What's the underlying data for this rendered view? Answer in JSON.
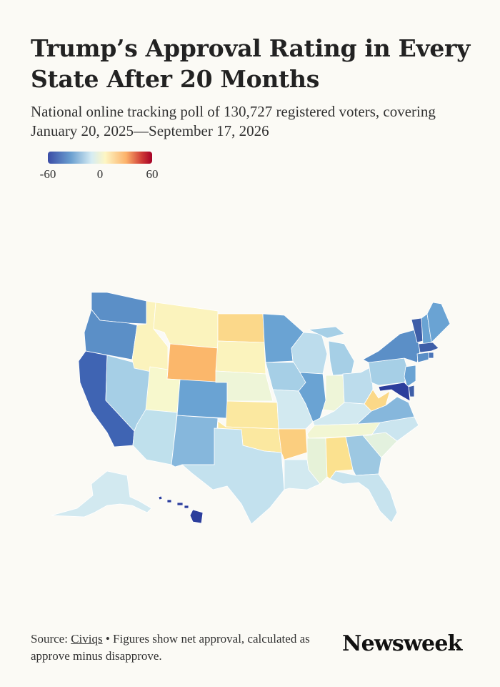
{
  "title": "Trump’s Approval Rating in Every State After 20 Months",
  "subtitle": "National online tracking poll of 130,727 registered voters, covering January 20, 2025—September 17, 2026",
  "legend": {
    "ticks": [
      "-60",
      "0",
      "60"
    ],
    "scale": {
      "min": -60,
      "max": 60
    },
    "colors": {
      "low": "#3b4ca6",
      "mid": "#fdf6c4",
      "high": "#a50026"
    }
  },
  "footer": {
    "source_prefix": "Source:",
    "source_link": "Civiqs",
    "source_bullet": "•",
    "note": "Figures show net approval, calculated as approve minus disapprove."
  },
  "brand": "Newsweek",
  "map_data": {
    "measure": "net approval",
    "states": [
      {
        "state": "WA",
        "color": "#5b8fc7"
      },
      {
        "state": "OR",
        "color": "#5b8fc7"
      },
      {
        "state": "CA",
        "color": "#3f64b3"
      },
      {
        "state": "NV",
        "color": "#a6cfe6"
      },
      {
        "state": "ID",
        "color": "#fbf3bd"
      },
      {
        "state": "MT",
        "color": "#fbf3bd"
      },
      {
        "state": "WY",
        "color": "#fbb76b"
      },
      {
        "state": "UT",
        "color": "#f7f8cd"
      },
      {
        "state": "AZ",
        "color": "#bfe0ec"
      },
      {
        "state": "CO",
        "color": "#6aa3d3"
      },
      {
        "state": "NM",
        "color": "#86b7dc"
      },
      {
        "state": "ND",
        "color": "#fbd88a"
      },
      {
        "state": "SD",
        "color": "#fbf3bd"
      },
      {
        "state": "NE",
        "color": "#eef5d8"
      },
      {
        "state": "KS",
        "color": "#fbe8a0"
      },
      {
        "state": "OK",
        "color": "#fbe8a0"
      },
      {
        "state": "TX",
        "color": "#c3e1ee"
      },
      {
        "state": "MN",
        "color": "#6aa3d3"
      },
      {
        "state": "IA",
        "color": "#a6cfe6"
      },
      {
        "state": "MO",
        "color": "#d2e9f0"
      },
      {
        "state": "AR",
        "color": "#fbce7f"
      },
      {
        "state": "LA",
        "color": "#d2e9f0"
      },
      {
        "state": "WI",
        "color": "#bcdcec"
      },
      {
        "state": "IL",
        "color": "#6aa3d3"
      },
      {
        "state": "MI",
        "color": "#a6cfe6"
      },
      {
        "state": "IN",
        "color": "#eef5d8"
      },
      {
        "state": "OH",
        "color": "#bcdcec"
      },
      {
        "state": "KY",
        "color": "#d2e9f0"
      },
      {
        "state": "TN",
        "color": "#f2f6d3"
      },
      {
        "state": "MS",
        "color": "#e6f2d8"
      },
      {
        "state": "AL",
        "color": "#fbe18f"
      },
      {
        "state": "GA",
        "color": "#9dc8e2"
      },
      {
        "state": "FL",
        "color": "#c7e3ee"
      },
      {
        "state": "SC",
        "color": "#e3f1de"
      },
      {
        "state": "NC",
        "color": "#cbe5ef"
      },
      {
        "state": "VA",
        "color": "#86b7dc"
      },
      {
        "state": "WV",
        "color": "#fbd888"
      },
      {
        "state": "PA",
        "color": "#a6cfe6"
      },
      {
        "state": "NY",
        "color": "#5b8fc7"
      },
      {
        "state": "VT",
        "color": "#3e5ea8"
      },
      {
        "state": "NH",
        "color": "#6aa3d3"
      },
      {
        "state": "ME",
        "color": "#6aa3d3"
      },
      {
        "state": "MA",
        "color": "#3e5ea8"
      },
      {
        "state": "RI",
        "color": "#4a74b8"
      },
      {
        "state": "CT",
        "color": "#5b8fc7"
      },
      {
        "state": "NJ",
        "color": "#6aa3d3"
      },
      {
        "state": "DE",
        "color": "#3e5ea8"
      },
      {
        "state": "MD",
        "color": "#2c3e9c"
      },
      {
        "state": "AK",
        "color": "#d2e9f0"
      },
      {
        "state": "HI",
        "color": "#2c3e9c"
      }
    ]
  }
}
